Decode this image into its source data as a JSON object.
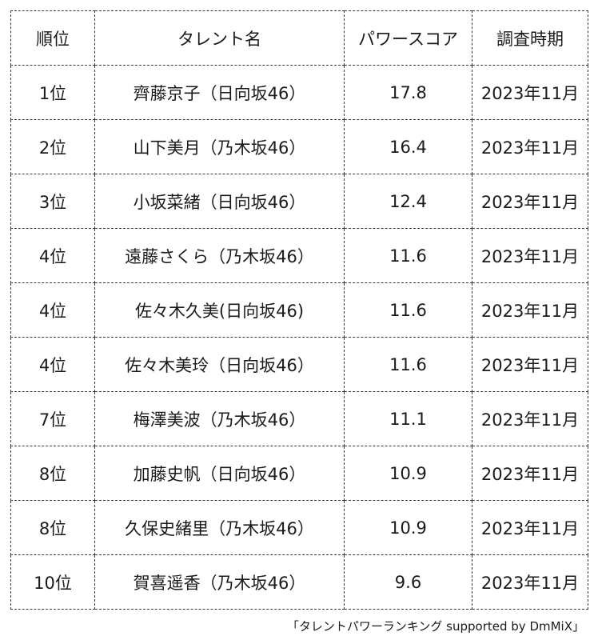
{
  "table": {
    "headers": [
      "順位",
      "タレント名",
      "パワースコア",
      "調査時期"
    ],
    "rows": [
      {
        "rank": "1位",
        "name": "齊藤京子（日向坂46）",
        "score": "17.8",
        "period": "2023年11月"
      },
      {
        "rank": "2位",
        "name": "山下美月（乃木坂46）",
        "score": "16.4",
        "period": "2023年11月"
      },
      {
        "rank": "3位",
        "name": "小坂菜緒（日向坂46）",
        "score": "12.4",
        "period": "2023年11月"
      },
      {
        "rank": "4位",
        "name": "遠藤さくら（乃木坂46）",
        "score": "11.6",
        "period": "2023年11月"
      },
      {
        "rank": "4位",
        "name": "佐々木久美(日向坂46)",
        "score": "11.6",
        "period": "2023年11月"
      },
      {
        "rank": "4位",
        "name": "佐々木美玲（日向坂46）",
        "score": "11.6",
        "period": "2023年11月"
      },
      {
        "rank": "7位",
        "name": "梅澤美波（乃木坂46）",
        "score": "11.1",
        "period": "2023年11月"
      },
      {
        "rank": "8位",
        "name": "加藤史帆（日向坂46）",
        "score": "10.9",
        "period": "2023年11月"
      },
      {
        "rank": "8位",
        "name": "久保史緒里（乃木坂46）",
        "score": "10.9",
        "period": "2023年11月"
      },
      {
        "rank": "10位",
        "name": "賀喜遥香（乃木坂46）",
        "score": "9.6",
        "period": "2023年11月"
      }
    ]
  },
  "footer": {
    "source": "「タレントパワーランキング supported by DmMiX」"
  }
}
